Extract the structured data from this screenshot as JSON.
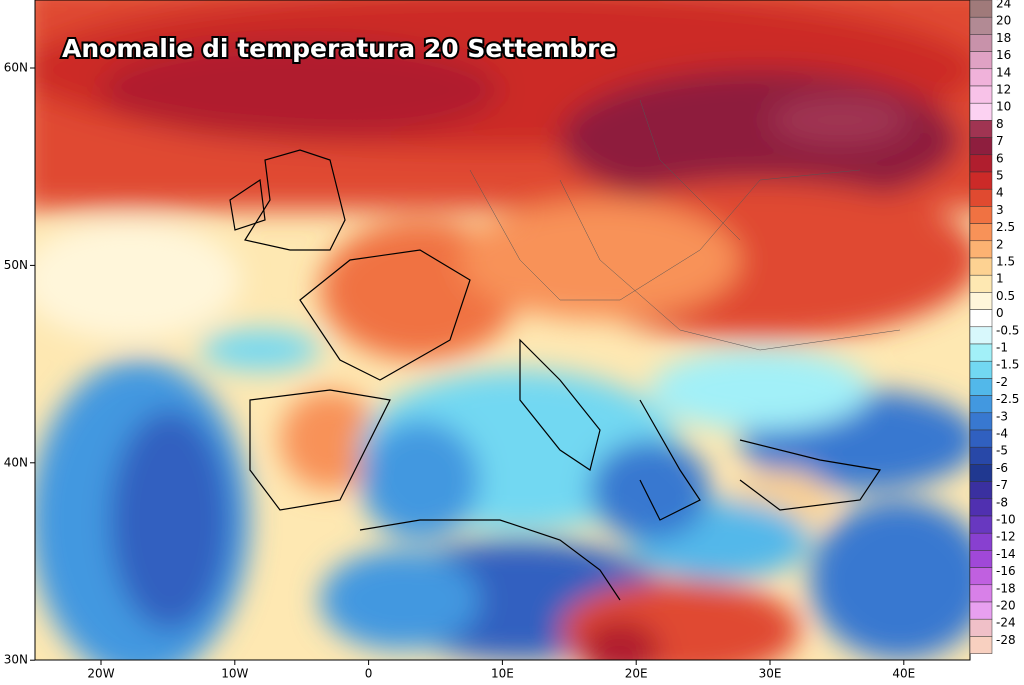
{
  "title": "Anomalie di temperatura 20 Settembre",
  "map": {
    "lat_labels": [
      "60N",
      "50N",
      "40N",
      "30N"
    ],
    "lon_labels": [
      "20W",
      "10W",
      "0",
      "10E",
      "20E",
      "30E",
      "40E"
    ]
  },
  "legend": {
    "levels": [
      {
        "label": 24,
        "color": "#a07a7a"
      },
      {
        "label": 20,
        "color": "#b28a94"
      },
      {
        "label": 18,
        "color": "#c892aa"
      },
      {
        "label": 16,
        "color": "#e0a2c4"
      },
      {
        "label": 14,
        "color": "#f0b2da"
      },
      {
        "label": 12,
        "color": "#f8c2e8"
      },
      {
        "label": 10,
        "color": "#fcd2f2"
      },
      {
        "label": 8,
        "color": "#a03452"
      },
      {
        "label": 7,
        "color": "#8e1e3e"
      },
      {
        "label": 6,
        "color": "#b01e2e"
      },
      {
        "label": 5,
        "color": "#cc2a28"
      },
      {
        "label": 4,
        "color": "#e04a30"
      },
      {
        "label": 3,
        "color": "#f07242"
      },
      {
        "label": 2.5,
        "color": "#f89258"
      },
      {
        "label": 2,
        "color": "#fcb272"
      },
      {
        "label": 1.5,
        "color": "#fdd292"
      },
      {
        "label": 1,
        "color": "#fee8b2"
      },
      {
        "label": 0.5,
        "color": "#fff6da"
      },
      {
        "label": 0,
        "color": "#ffffff"
      },
      {
        "label": -0.5,
        "color": "#d8f8fc"
      },
      {
        "label": -1,
        "color": "#a2f0f8"
      },
      {
        "label": -1.5,
        "color": "#72d8f2"
      },
      {
        "label": -2,
        "color": "#52b8ea"
      },
      {
        "label": -2.5,
        "color": "#4298e0"
      },
      {
        "label": -3,
        "color": "#3878d0"
      },
      {
        "label": -4,
        "color": "#3060c0"
      },
      {
        "label": -5,
        "color": "#2848a8"
      },
      {
        "label": -6,
        "color": "#203890"
      },
      {
        "label": -7,
        "color": "#3a30a0"
      },
      {
        "label": -8,
        "color": "#5030b0"
      },
      {
        "label": -10,
        "color": "#6838c0"
      },
      {
        "label": -12,
        "color": "#8840d0"
      },
      {
        "label": -14,
        "color": "#a048d8"
      },
      {
        "label": -16,
        "color": "#c060e0"
      },
      {
        "label": -18,
        "color": "#d880e8"
      },
      {
        "label": -20,
        "color": "#e8a0f0"
      },
      {
        "label": -24,
        "color": "#f0c0c8"
      },
      {
        "label": -28,
        "color": "#f8d0c0"
      }
    ]
  }
}
